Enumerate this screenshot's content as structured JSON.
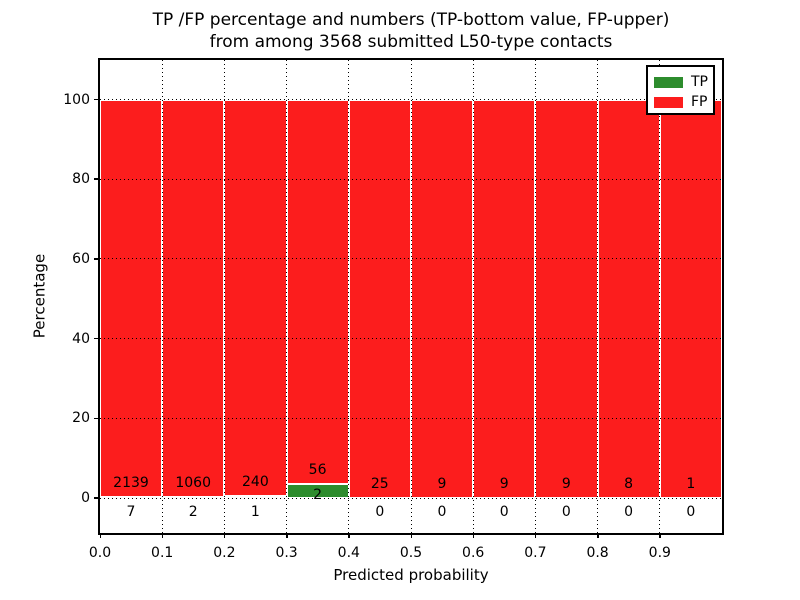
{
  "title": {
    "line1": "TP /FP percentage and numbers (TP-bottom value, FP-upper)",
    "line2": "from among 3568 submitted L50-type contacts"
  },
  "axes": {
    "xlabel": "Predicted probability",
    "ylabel": "Percentage",
    "xtick_labels": [
      "0.0",
      "0.1",
      "0.2",
      "0.3",
      "0.4",
      "0.5",
      "0.6",
      "0.7",
      "0.8",
      "0.9"
    ],
    "ytick_labels": [
      "0",
      "20",
      "40",
      "60",
      "80",
      "100"
    ],
    "ytick_values": [
      0,
      20,
      40,
      60,
      80,
      100
    ]
  },
  "legend": {
    "items": [
      {
        "label": "TP",
        "color": "#2d8c2d"
      },
      {
        "label": "FP",
        "color": "#fc1d1d"
      }
    ]
  },
  "chart_data": {
    "type": "bar",
    "stacked": true,
    "title": "TP /FP percentage and numbers (TP-bottom value, FP-upper) from among 3568 submitted L50-type contacts",
    "xlabel": "Predicted probability",
    "ylabel": "Percentage",
    "xlim": [
      0.0,
      1.0
    ],
    "ylim": [
      -9,
      110
    ],
    "grid": "dotted",
    "legend_position": "upper right",
    "total_contacts": 3568,
    "bin_width": 0.1,
    "bin_starts": [
      0.0,
      0.1,
      0.2,
      0.3,
      0.4,
      0.5,
      0.6,
      0.7,
      0.8,
      0.9
    ],
    "series": [
      {
        "name": "TP",
        "color": "#2d8c2d",
        "counts": [
          7,
          2,
          1,
          2,
          0,
          0,
          0,
          0,
          0,
          0
        ],
        "percent": [
          0.33,
          0.19,
          0.41,
          3.45,
          0,
          0,
          0,
          0,
          0,
          0
        ]
      },
      {
        "name": "FP",
        "color": "#fc1d1d",
        "counts": [
          2139,
          1060,
          240,
          56,
          25,
          9,
          9,
          9,
          8,
          1
        ],
        "percent": [
          99.67,
          99.81,
          99.59,
          96.55,
          100,
          100,
          100,
          100,
          100,
          100
        ]
      }
    ]
  }
}
